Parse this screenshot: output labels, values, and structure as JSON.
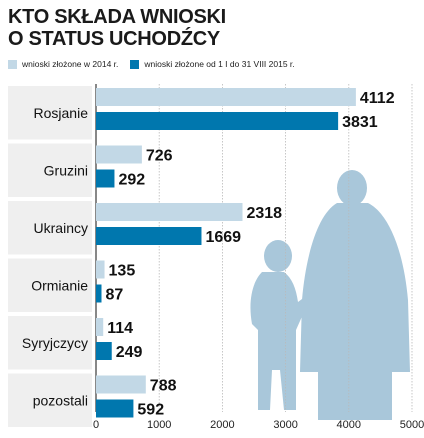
{
  "title_lines": [
    "KTO SKŁADA WNIOSKI",
    "O STATUS UCHODŹCY"
  ],
  "colors": {
    "series_2014": "#c2d8e6",
    "series_2015": "#0077ae",
    "silhouette": "#a9c7da",
    "label_panel": "#efefef",
    "gridline": "#b9b9b9"
  },
  "silhouette_icon": "adult-and-child-silhouette",
  "chart_data": {
    "type": "bar",
    "orientation": "horizontal",
    "title": "KTO SKŁADA WNIOSKI O STATUS UCHODŹCY",
    "categories": [
      "Rosjanie",
      "Gruzini",
      "Ukraincy",
      "Ormianie",
      "Syryjczycy",
      "pozostali"
    ],
    "series": [
      {
        "name": "wnioski złożone w 2014 r.",
        "values": [
          4112,
          726,
          2318,
          135,
          114,
          788
        ]
      },
      {
        "name": "wnioski złożone od 1 I do 31 VIII 2015 r.",
        "values": [
          3831,
          292,
          1669,
          87,
          249,
          592
        ]
      }
    ],
    "xlim": [
      0,
      5000
    ],
    "xticks": [
      0,
      1000,
      2000,
      3000,
      4000,
      5000
    ],
    "grid": true,
    "legend_position": "top",
    "data_labels": true
  }
}
